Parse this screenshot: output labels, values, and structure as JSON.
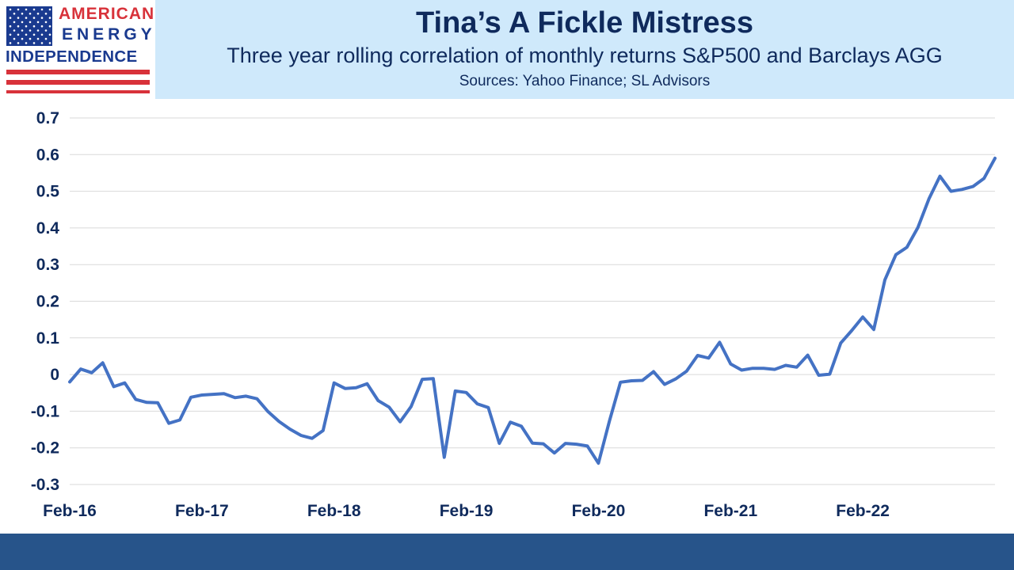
{
  "logo": {
    "line1": "AMERICAN",
    "line2": "ENERGY",
    "line3": "INDEPENDENCE",
    "brand_red": "#d8323a",
    "brand_blue": "#1a3a8f"
  },
  "header": {
    "title": "Tina’s A Fickle Mistress",
    "subtitle": "Three year rolling correlation of monthly returns S&P500 and Barclays AGG",
    "source": "Sources: Yahoo Finance; SL Advisors",
    "background": "#cfe9fb",
    "text_color": "#0f2a5c"
  },
  "chart_data": {
    "type": "line",
    "title": "Tina’s A Fickle Mistress",
    "subtitle": "Three year rolling correlation of monthly returns S&P500 and Barclays AGG",
    "xlabel": "",
    "ylabel": "",
    "ylim": [
      -0.3,
      0.7
    ],
    "yticks": [
      -0.3,
      -0.2,
      -0.1,
      0,
      0.1,
      0.2,
      0.3,
      0.4,
      0.5,
      0.6,
      0.7
    ],
    "ytick_labels": [
      "-0.3",
      "-0.2",
      "-0.1",
      "0",
      "0.1",
      "0.2",
      "0.3",
      "0.4",
      "0.5",
      "0.6",
      "0.7"
    ],
    "xtick_labels": [
      "Feb-16",
      "Feb-17",
      "Feb-18",
      "Feb-19",
      "Feb-20",
      "Feb-21",
      "Feb-22"
    ],
    "x_start": "Feb-16",
    "x_end": "Feb-23",
    "grid": true,
    "line_color": "#4472c4",
    "series": [
      {
        "values": [
          -0.02,
          0.015,
          0.005,
          0.032,
          -0.033,
          -0.023,
          -0.068,
          -0.076,
          -0.077,
          -0.133,
          -0.124,
          -0.062,
          -0.056,
          -0.054,
          -0.052,
          -0.063,
          -0.059,
          -0.066,
          -0.101,
          -0.128,
          -0.149,
          -0.166,
          -0.174,
          -0.153,
          -0.023,
          -0.038,
          -0.036,
          -0.025,
          -0.071,
          -0.089,
          -0.129,
          -0.087,
          -0.013,
          -0.011,
          -0.226,
          -0.045,
          -0.049,
          -0.08,
          -0.09,
          -0.188,
          -0.13,
          -0.141,
          -0.187,
          -0.189,
          -0.214,
          -0.188,
          -0.19,
          -0.195,
          -0.242,
          -0.127,
          -0.021,
          -0.017,
          -0.016,
          0.008,
          -0.027,
          -0.012,
          0.009,
          0.052,
          0.045,
          0.088,
          0.029,
          0.012,
          0.017,
          0.017,
          0.014,
          0.025,
          0.02,
          0.053,
          -0.002,
          0.001,
          0.086,
          0.12,
          0.157,
          0.123,
          0.258,
          0.327,
          0.347,
          0.401,
          0.479,
          0.541,
          0.5,
          0.505,
          0.513,
          0.535,
          0.59
        ]
      }
    ]
  }
}
